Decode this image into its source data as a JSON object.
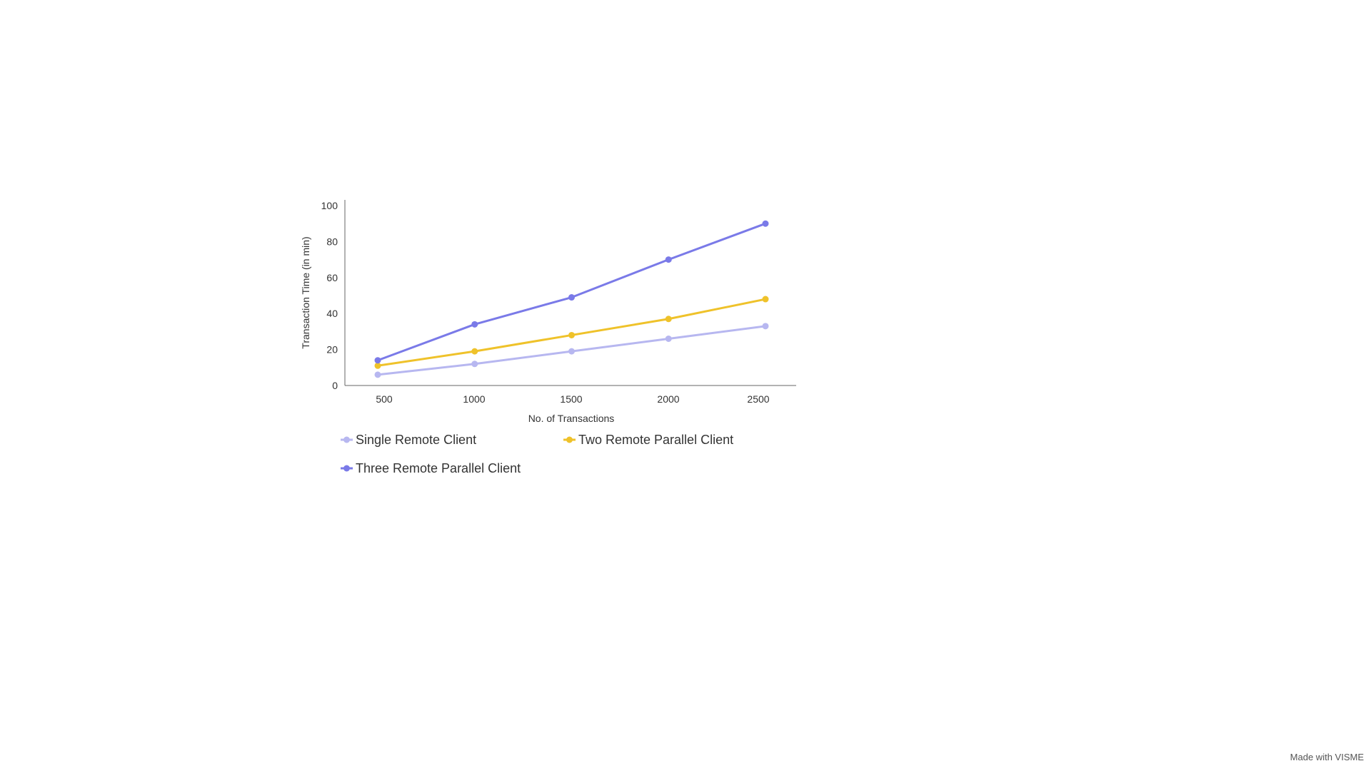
{
  "chart_data": {
    "type": "line",
    "title": "",
    "xlabel": "No. of Transactions",
    "ylabel": "Transaction Time (in min)",
    "x": [
      500,
      1000,
      1500,
      2000,
      2500
    ],
    "x_tick_labels": [
      "500",
      "1000",
      "1500",
      "2000",
      "2500"
    ],
    "ylim": [
      0,
      100
    ],
    "y_ticks": [
      0,
      20,
      40,
      60,
      80,
      100
    ],
    "y_tick_labels": [
      "0",
      "20",
      "40",
      "60",
      "80",
      "100"
    ],
    "grid": false,
    "legend_position": "bottom",
    "series": [
      {
        "name": "Single Remote Client",
        "color": "#b7b7f0",
        "values": [
          6,
          12,
          19,
          26,
          33
        ]
      },
      {
        "name": "Two Remote Parallel Client",
        "color": "#efc22a",
        "values": [
          11,
          19,
          28,
          37,
          48
        ]
      },
      {
        "name": "Three Remote Parallel Client",
        "color": "#7a7ae8",
        "values": [
          14,
          34,
          49,
          70,
          90
        ]
      }
    ]
  },
  "footer": {
    "text": "Made with VISME"
  }
}
